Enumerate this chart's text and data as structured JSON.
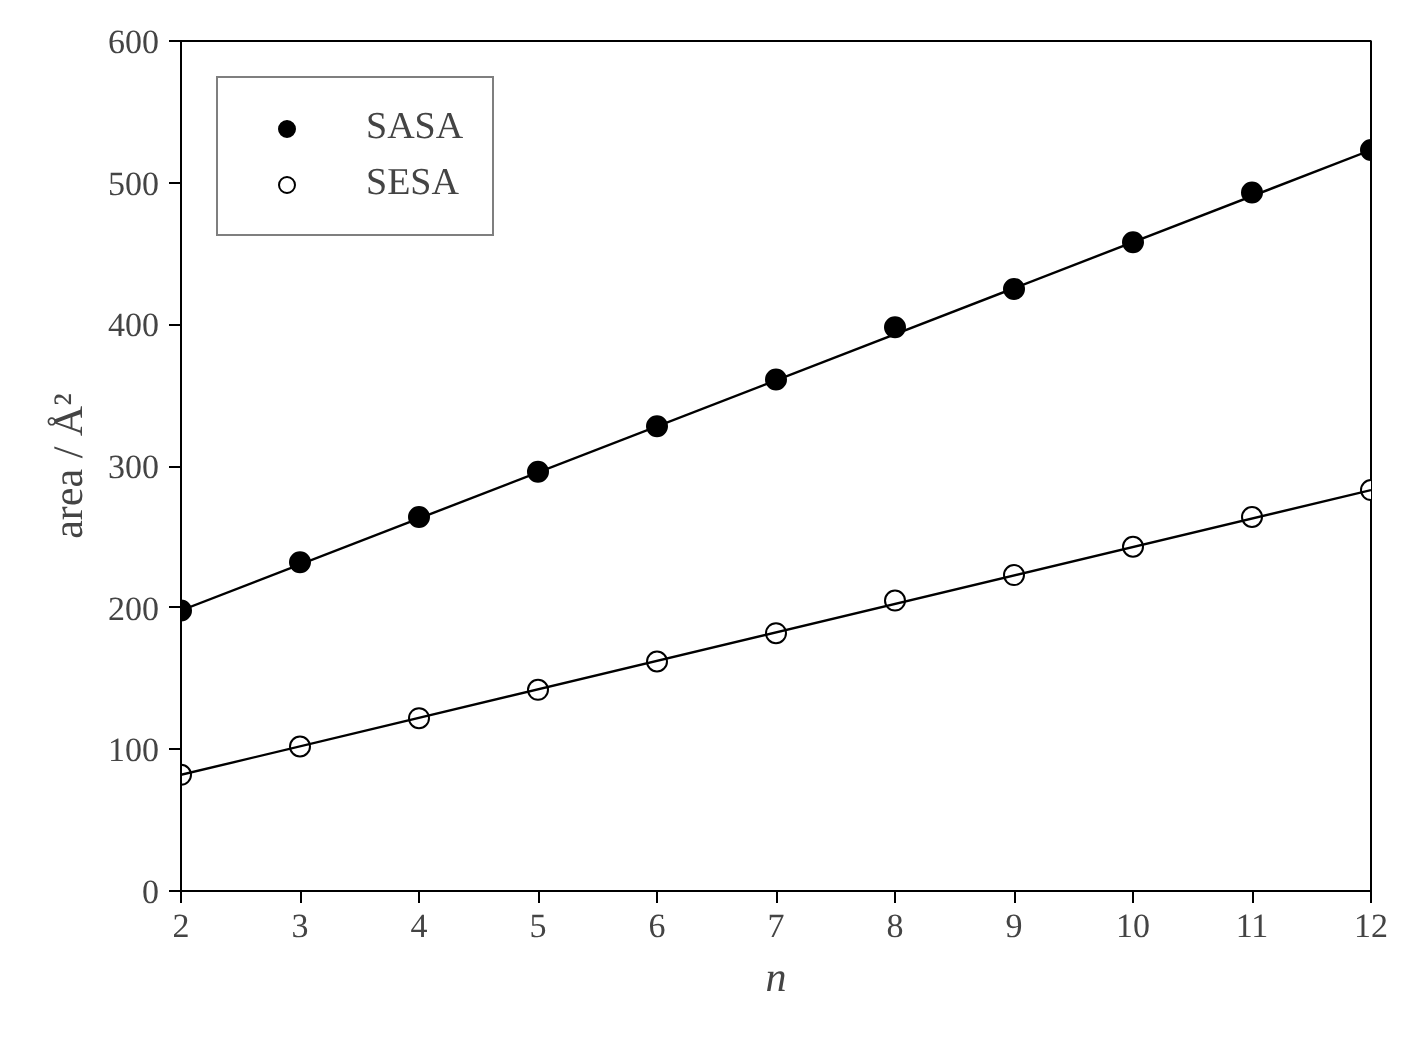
{
  "chart_data": {
    "type": "scatter",
    "xlabel": "n",
    "ylabel": "area / Å²",
    "xlim": [
      2,
      12
    ],
    "xticks": [
      2,
      3,
      4,
      5,
      6,
      7,
      8,
      9,
      10,
      11,
      12
    ],
    "ylim": [
      0,
      600
    ],
    "yticks": [
      0,
      100,
      200,
      300,
      400,
      500,
      600
    ],
    "grid": false,
    "legend": "top left",
    "series": [
      {
        "name": "SASA",
        "marker": "circle",
        "color": "#000000",
        "x": [
          2,
          3,
          4,
          5,
          6,
          7,
          8,
          9,
          10,
          11,
          12
        ],
        "values": [
          198,
          232,
          264,
          296,
          328,
          361,
          398,
          425,
          458,
          493,
          523
        ]
      },
      {
        "name": "SESA",
        "marker": "circle",
        "color": "#ffffff",
        "x": [
          2,
          3,
          4,
          5,
          6,
          7,
          8,
          9,
          10,
          11,
          12
        ],
        "values": [
          82,
          102,
          122,
          142,
          162,
          182,
          205,
          223,
          243,
          264,
          283
        ]
      },
      {
        "type": "line",
        "marker": "none",
        "color": "#000000",
        "x": [
          2,
          12
        ],
        "values": [
          198,
          523
        ]
      },
      {
        "type": "line",
        "marker": "none",
        "color": "#000000",
        "x": [
          2,
          12
        ],
        "values": [
          82,
          283
        ]
      }
    ]
  }
}
